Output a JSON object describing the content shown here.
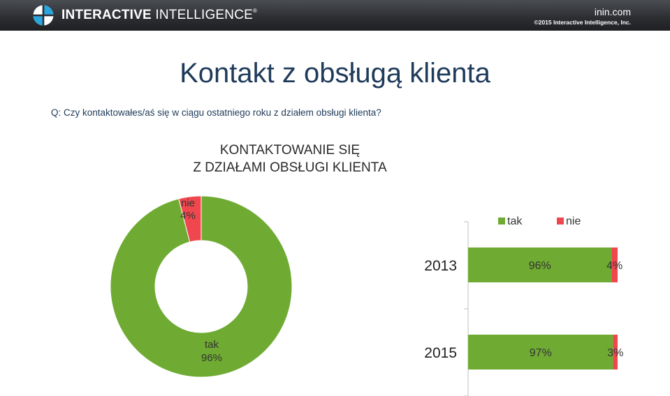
{
  "header": {
    "brand_bold": "INTERACTIVE",
    "brand_light": "INTELLIGENCE",
    "brand_reg": "®",
    "site_url": "inin.com",
    "copyright": "©2015 Interactive Intelligence, Inc."
  },
  "slide": {
    "title": "Kontakt z obsługą klienta",
    "question": "Q: Czy kontaktowałes/aś się w ciągu ostatniego roku z działem obsługi klienta?"
  },
  "colors": {
    "tak": "#6fab33",
    "nie": "#f0474e",
    "title": "#1f3b5a"
  },
  "chart_data": [
    {
      "type": "pie",
      "title_lines": [
        "KONTAKTOWANIE SIĘ",
        "Z DZIAŁAMI OBSŁUGI KLIENTA"
      ],
      "donut": true,
      "slices": [
        {
          "label": "tak",
          "value": 96,
          "display": "96%"
        },
        {
          "label": "nie",
          "value": 4,
          "display": "4%"
        }
      ]
    },
    {
      "type": "bar",
      "orientation": "horizontal",
      "stacked": true,
      "legend_position": "top",
      "categories": [
        "2013",
        "2015"
      ],
      "series": [
        {
          "name": "tak",
          "values": [
            96,
            97
          ],
          "labels": [
            "96%",
            "97%"
          ]
        },
        {
          "name": "nie",
          "values": [
            4,
            3
          ],
          "labels": [
            "4%",
            "3%"
          ]
        }
      ]
    }
  ]
}
